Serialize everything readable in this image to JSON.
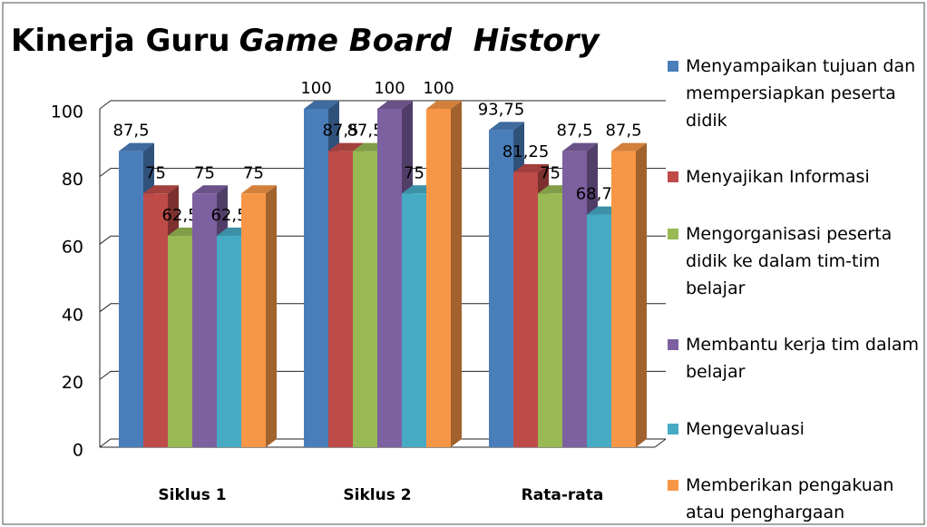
{
  "chart_data": {
    "type": "bar3d",
    "title": [
      "Kinerja Guru",
      "Game Board  History"
    ],
    "categories": [
      "Siklus 1",
      "Siklus 2",
      "Rata-rata"
    ],
    "series": [
      {
        "name": "Menyampaikan tujuan dan mempersiapkan peserta didik",
        "color": "#4a7ebb",
        "values": [
          87.5,
          100,
          93.75
        ],
        "value_labels": [
          "87,5",
          "100",
          "93,75"
        ]
      },
      {
        "name": "Menyajikan Informasi",
        "color": "#be4b48",
        "values": [
          75,
          87.5,
          81.25
        ],
        "value_labels": [
          "75",
          "87,5",
          "81,25"
        ]
      },
      {
        "name": "Mengorganisasi peserta didik ke dalam tim-tim belajar",
        "color": "#98b954",
        "values": [
          62.5,
          87.5,
          75
        ],
        "value_labels": [
          "62,5",
          "87,5",
          "75"
        ]
      },
      {
        "name": "Membantu kerja tim dalam belajar",
        "color": "#7d60a0",
        "values": [
          75,
          100,
          87.5
        ],
        "value_labels": [
          "75",
          "100",
          "87,5"
        ]
      },
      {
        "name": "Mengevaluasi",
        "color": "#46aac5",
        "values": [
          62.5,
          75,
          68.75
        ],
        "value_labels": [
          "62,5",
          "75",
          "68,75"
        ]
      },
      {
        "name": "Memberikan pengakuan atau penghargaan",
        "color": "#f79646",
        "values": [
          75,
          100,
          87.5
        ],
        "value_labels": [
          "75",
          "100",
          "87,5"
        ]
      }
    ],
    "ylim": [
      0,
      100
    ],
    "yticks": [
      0,
      20,
      40,
      60,
      80,
      100
    ],
    "grid": true,
    "legend": "right"
  }
}
